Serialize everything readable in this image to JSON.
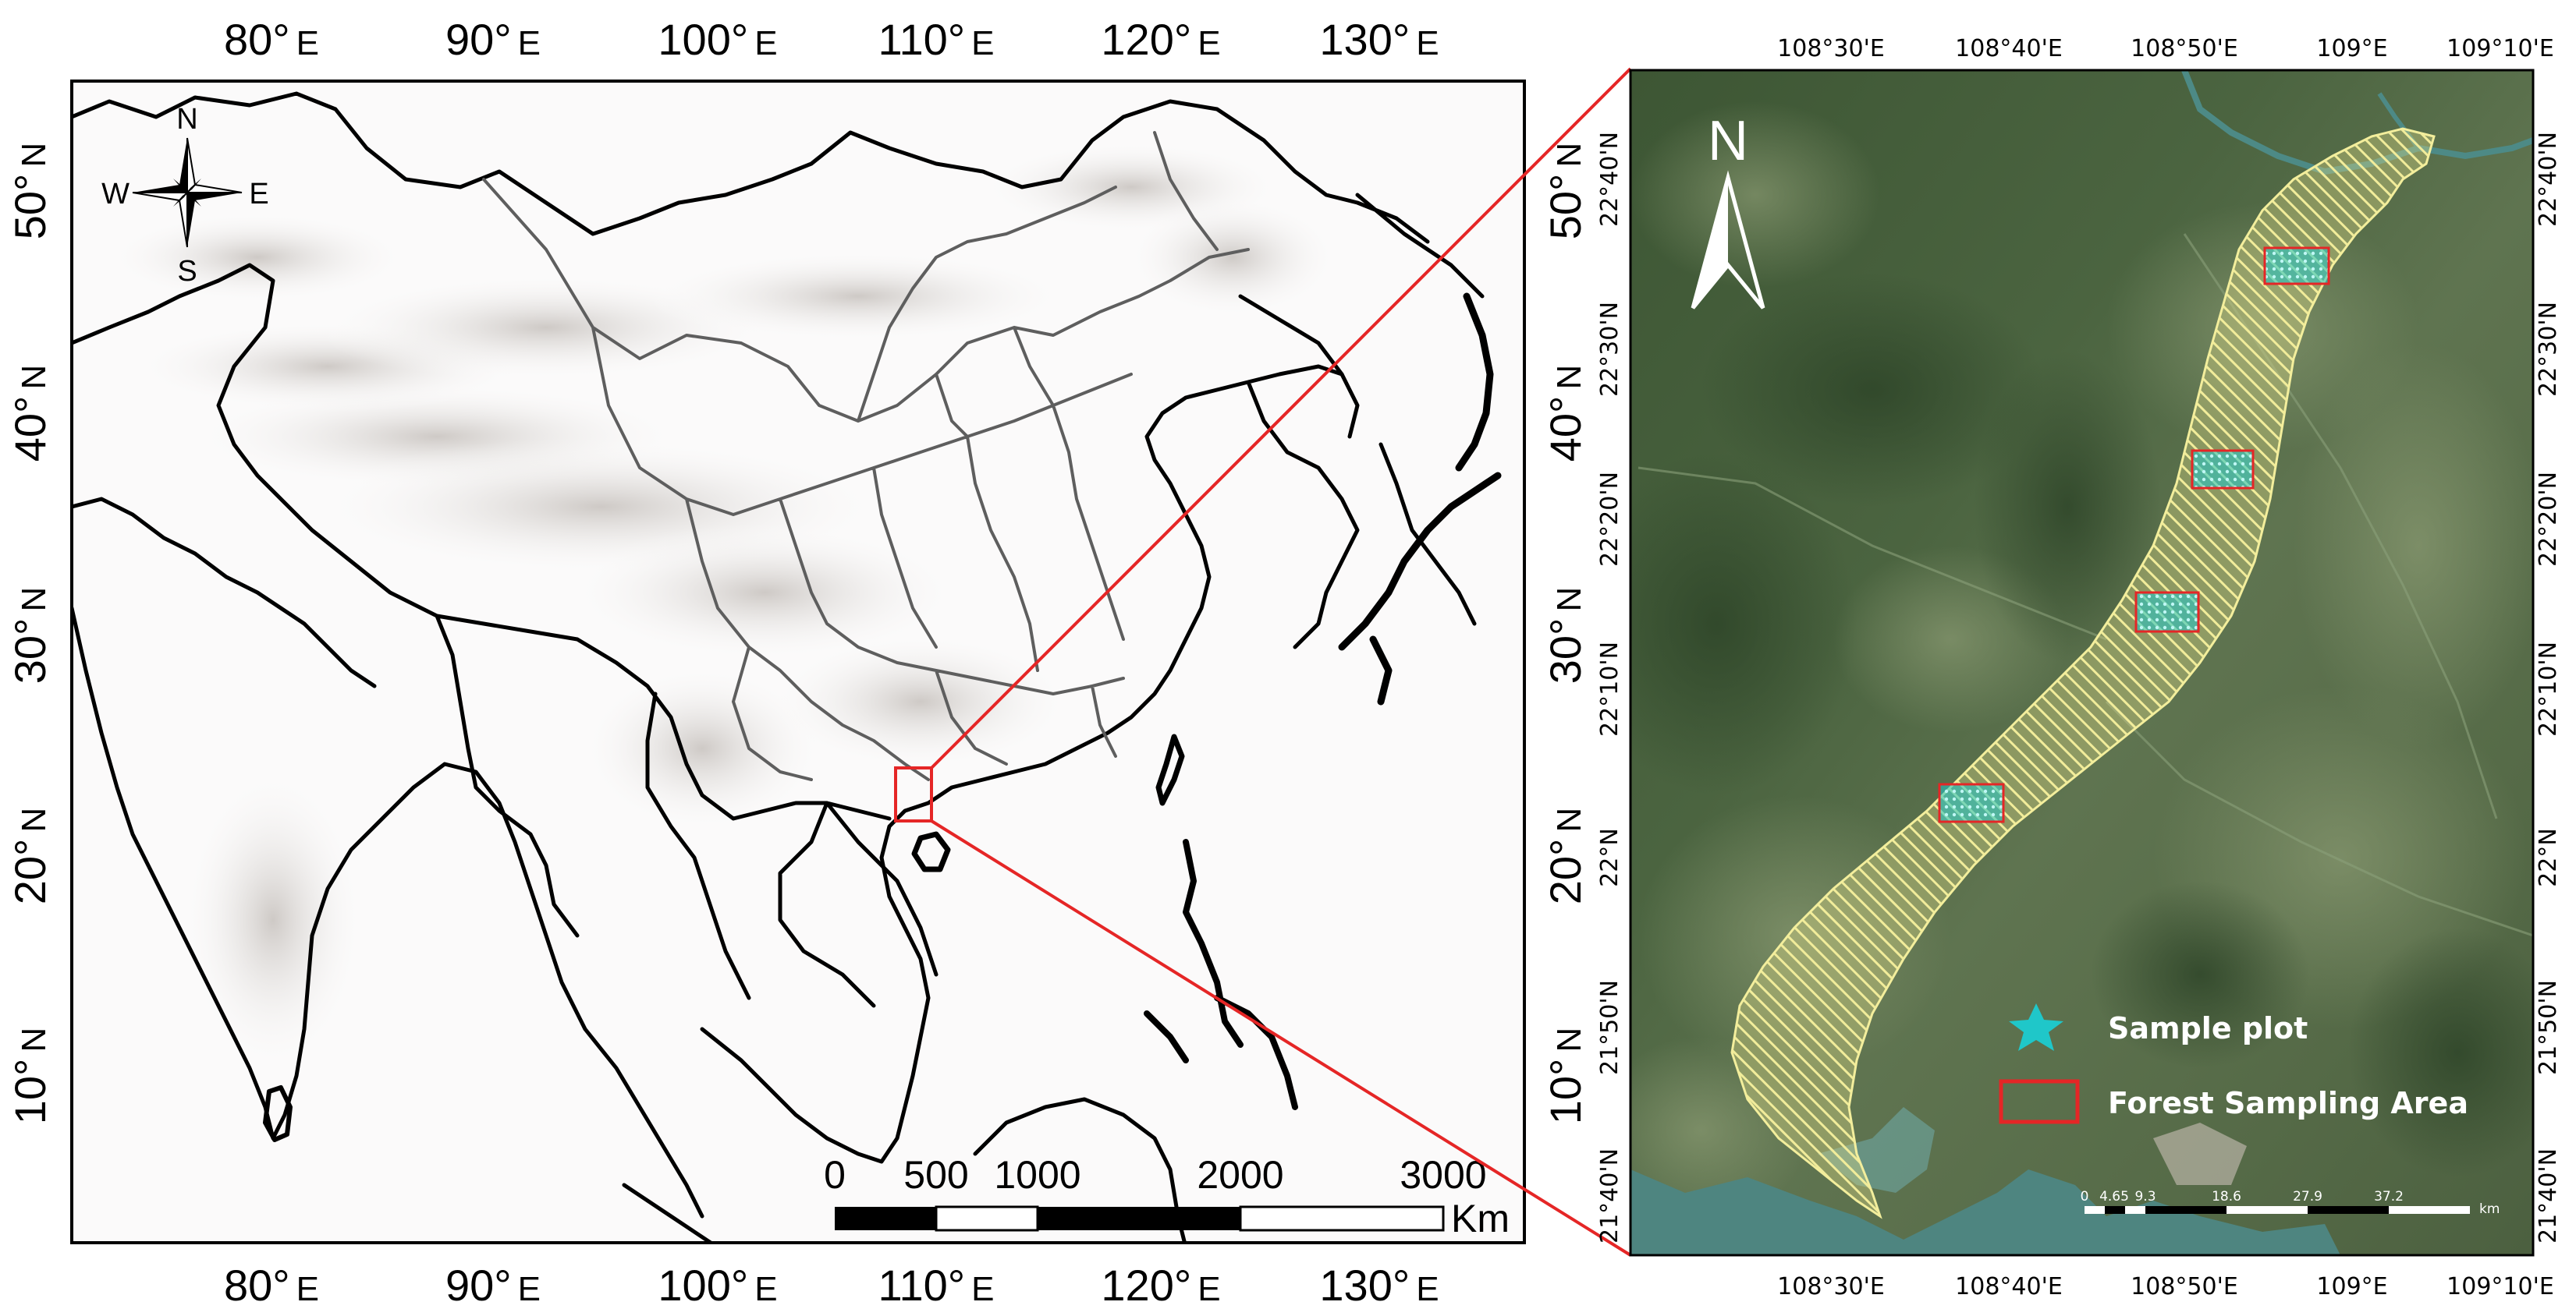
{
  "left_map": {
    "lon_ticks": [
      {
        "deg": "80°",
        "hemi": "E"
      },
      {
        "deg": "90°",
        "hemi": "E"
      },
      {
        "deg": "100°",
        "hemi": "E"
      },
      {
        "deg": "110°",
        "hemi": "E"
      },
      {
        "deg": "120°",
        "hemi": "E"
      },
      {
        "deg": "130°",
        "hemi": "E"
      }
    ],
    "lat_ticks": [
      {
        "deg": "50°",
        "hemi": "N"
      },
      {
        "deg": "40°",
        "hemi": "N"
      },
      {
        "deg": "30°",
        "hemi": "N"
      },
      {
        "deg": "20°",
        "hemi": "N"
      },
      {
        "deg": "10°",
        "hemi": "N"
      }
    ],
    "compass": {
      "n": "N",
      "s": "S",
      "e": "E",
      "w": "W"
    },
    "scale_bar": {
      "labels": [
        "0",
        "500",
        "1000",
        "2000",
        "3000"
      ],
      "unit": "Km"
    }
  },
  "right_map": {
    "lon_ticks": [
      "108°30'E",
      "108°40'E",
      "108°50'E",
      "109°E",
      "109°10'E"
    ],
    "lat_ticks": [
      "22°40'N",
      "22°30'N",
      "22°20'N",
      "22°10'N",
      "22°N",
      "21°50'N",
      "21°40'N"
    ],
    "north_arrow": "N",
    "legend": [
      {
        "symbol": "star",
        "label": "Sample plot",
        "color": "#1fc7c9"
      },
      {
        "symbol": "box",
        "label": "Forest Sampling Area",
        "color": "#e52626"
      }
    ],
    "scale_bar": {
      "labels": [
        "0",
        "4.65",
        "9.3",
        "18.6",
        "27.9",
        "37.2"
      ],
      "unit": "km"
    }
  },
  "colors": {
    "inset_box": "#e52626",
    "study_area": "#e8e38a",
    "sample_plot": "#1fc7c9",
    "imagery_dark": "#3f5a33",
    "imagery_light": "#6b7f58",
    "water": "#4d8a86"
  }
}
